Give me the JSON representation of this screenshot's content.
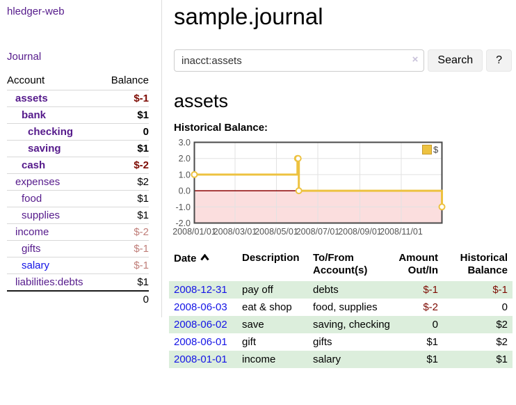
{
  "colors": {
    "link_purple": "#551a8b",
    "link_blue": "#1414e6",
    "negative": "#7d0a02",
    "negative_muted": "#c07e79",
    "row_shade_green": "#dceedc",
    "chart_line_gold": "#edc240",
    "zero_line_red": "#8b0000",
    "negative_region_pink": "#fbdede"
  },
  "app": {
    "brand": "hledger-web",
    "nav_journal": "Journal"
  },
  "sidebar": {
    "header_account": "Account",
    "header_balance": "Balance",
    "accounts": [
      {
        "name": "assets",
        "balance": "$-1",
        "level": 0,
        "strong": true,
        "neg": "strong"
      },
      {
        "name": "bank",
        "balance": "$1",
        "level": 1,
        "strong": true
      },
      {
        "name": "checking",
        "balance": "0",
        "level": 2,
        "strong": true
      },
      {
        "name": "saving",
        "balance": "$1",
        "level": 2,
        "strong": true
      },
      {
        "name": "cash",
        "balance": "$-2",
        "level": 1,
        "strong": true,
        "neg": "strong"
      },
      {
        "name": "expenses",
        "balance": "$2",
        "level": 0
      },
      {
        "name": "food",
        "balance": "$1",
        "level": 1
      },
      {
        "name": "supplies",
        "balance": "$1",
        "level": 1
      },
      {
        "name": "income",
        "balance": "$-2",
        "level": 0,
        "neg": "soft"
      },
      {
        "name": "gifts",
        "balance": "$-1",
        "level": 1,
        "neg": "soft"
      },
      {
        "name": "salary",
        "balance": "$-1",
        "level": 1,
        "neg": "soft",
        "blue": true
      },
      {
        "name": "liabilities:debts",
        "balance": "$1",
        "level": 0
      }
    ],
    "total": "0"
  },
  "main": {
    "title": "sample.journal",
    "search": {
      "value": "inacct:assets",
      "clear_icon": "×",
      "button_label": "Search",
      "help_label": "?"
    },
    "account_heading": "assets",
    "chart_label": "Historical Balance:"
  },
  "chart_data": {
    "type": "line",
    "style": "step-after",
    "title": "Historical Balance:",
    "legend": [
      {
        "name": "$",
        "color": "#edc240"
      }
    ],
    "legend_position": "top-right",
    "grid": true,
    "x_start": "2008-01-01",
    "x_end": "2008-12-31",
    "points": [
      {
        "date": "2008-01-01",
        "value": 1
      },
      {
        "date": "2008-06-01",
        "value": 2
      },
      {
        "date": "2008-06-02",
        "value": 2
      },
      {
        "date": "2008-06-03",
        "value": 0
      },
      {
        "date": "2008-12-31",
        "value": -1
      }
    ],
    "ylim": [
      -2,
      3
    ],
    "y_ticks": [
      "3.0",
      "2.0",
      "1.0",
      "0.0",
      "-1.0",
      "-2.0"
    ],
    "x_ticks": [
      "2008/01/01",
      "2008/03/01",
      "2008/05/01",
      "2008/07/01",
      "2008/09/01",
      "2008/11/01"
    ],
    "zero_line_color": "#8b0000",
    "negative_region_color": "#fbdede"
  },
  "register": {
    "headers": {
      "date": "Date",
      "description": "Description",
      "accounts": "To/From Account(s)",
      "amount": "Amount Out/In",
      "balance": "Historical Balance"
    },
    "rows": [
      {
        "date": "2008-12-31",
        "description": "pay off",
        "accounts": "debts",
        "amount": "$-1",
        "amount_neg": true,
        "balance": "$-1",
        "balance_neg": true,
        "shaded": true
      },
      {
        "date": "2008-06-03",
        "description": "eat & shop",
        "accounts": "food, supplies",
        "amount": "$-2",
        "amount_neg": true,
        "balance": "0",
        "balance_neg": false,
        "shaded": false
      },
      {
        "date": "2008-06-02",
        "description": "save",
        "accounts": "saving, checking",
        "amount": "0",
        "amount_neg": false,
        "balance": "$2",
        "balance_neg": false,
        "shaded": true
      },
      {
        "date": "2008-06-01",
        "description": "gift",
        "accounts": "gifts",
        "amount": "$1",
        "amount_neg": false,
        "balance": "$2",
        "balance_neg": false,
        "shaded": false
      },
      {
        "date": "2008-01-01",
        "description": "income",
        "accounts": "salary",
        "amount": "$1",
        "amount_neg": false,
        "balance": "$1",
        "balance_neg": false,
        "shaded": true
      }
    ]
  }
}
